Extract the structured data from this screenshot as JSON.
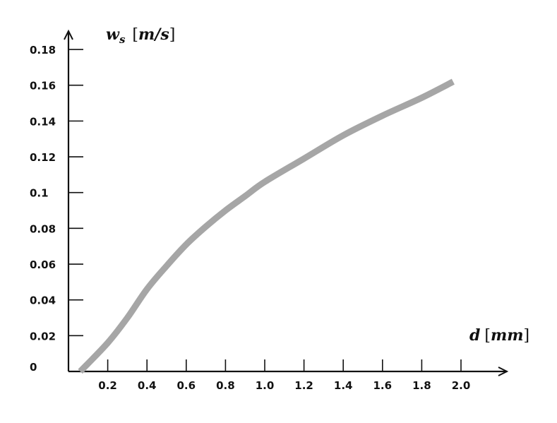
{
  "chart_data": {
    "type": "line",
    "title": "",
    "xlabel": "d [mm]",
    "ylabel": "w_s [m/s]",
    "xlabel_parts": {
      "var": "d",
      "unit": "mm"
    },
    "ylabel_parts": {
      "var": "w",
      "sub": "s",
      "unit": "m/s"
    },
    "xlim": [
      0,
      2.15
    ],
    "ylim": [
      0,
      0.19
    ],
    "grid": false,
    "legend": null,
    "x_ticks": [
      "0.2",
      "0.4",
      "0.6",
      "0.8",
      "1.0",
      "1.2",
      "1.4",
      "1.6",
      "1.8",
      "2.0"
    ],
    "y_ticks": [
      "0",
      "0.02",
      "0.04",
      "0.06",
      "0.08",
      "0.1",
      "0.12",
      "0.14",
      "0.16",
      "0.18"
    ],
    "series": [
      {
        "name": "w_s",
        "color": "#a6a6a6",
        "x": [
          0.06,
          0.2,
          0.3,
          0.4,
          0.5,
          0.6,
          0.7,
          0.8,
          0.9,
          1.0,
          1.2,
          1.4,
          1.6,
          1.8,
          1.96
        ],
        "y": [
          0.0,
          0.016,
          0.03,
          0.046,
          0.059,
          0.071,
          0.081,
          0.09,
          0.098,
          0.106,
          0.119,
          0.132,
          0.143,
          0.153,
          0.162
        ]
      }
    ]
  }
}
